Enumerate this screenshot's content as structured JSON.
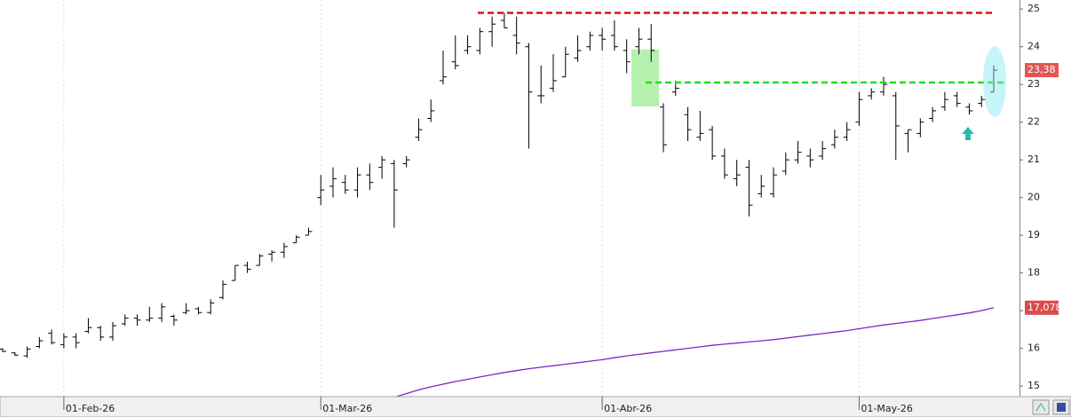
{
  "chart_data": {
    "type": "ohlc",
    "categories": [
      null,
      null,
      null,
      null,
      null,
      "01-Feb-26",
      null,
      null,
      null,
      null,
      null,
      null,
      null,
      null,
      null,
      null,
      null,
      null,
      null,
      null,
      null,
      null,
      null,
      null,
      null,
      null,
      "01-Mar-26",
      null,
      null,
      null,
      null,
      null,
      null,
      null,
      null,
      null,
      null,
      null,
      null,
      null,
      null,
      null,
      null,
      null,
      null,
      null,
      null,
      null,
      null,
      "01-Abr-26",
      null,
      null,
      null,
      null,
      null,
      null,
      null,
      null,
      null,
      null,
      null,
      null,
      null,
      null,
      null,
      null,
      null,
      null,
      null,
      null,
      "01-May-26",
      null,
      null,
      null,
      null,
      null,
      null,
      null,
      null,
      null,
      null,
      null
    ],
    "open": [
      15.98,
      15.88,
      15.8,
      16.05,
      16.4,
      16.1,
      16.3,
      16.45,
      16.55,
      16.3,
      16.65,
      16.8,
      16.75,
      16.8,
      16.85,
      16.95,
      17.05,
      16.95,
      17.35,
      17.8,
      18.2,
      18.2,
      18.5,
      18.55,
      18.8,
      19.0,
      20.0,
      20.3,
      20.4,
      20.2,
      20.6,
      20.8,
      20.9,
      20.9,
      21.6,
      22.1,
      23.1,
      23.6,
      23.9,
      23.9,
      24.4,
      24.7,
      24.3,
      24.0,
      22.7,
      22.9,
      23.2,
      23.7,
      24.0,
      24.3,
      24.3,
      23.9,
      24.0,
      24.2,
      22.4,
      22.8,
      22.2,
      21.6,
      21.8,
      21.1,
      20.5,
      20.8,
      20.1,
      20.1,
      20.7,
      21.0,
      21.1,
      21.1,
      21.4,
      21.6,
      22.0,
      22.7,
      22.8,
      22.7,
      21.7,
      21.7,
      22.1,
      22.4,
      22.7,
      22.4,
      22.5,
      22.8
    ],
    "high": [
      16.0,
      15.9,
      16.05,
      16.3,
      16.5,
      16.4,
      16.4,
      16.8,
      16.6,
      16.7,
      16.9,
      16.9,
      17.1,
      17.2,
      16.9,
      17.2,
      17.1,
      17.3,
      17.8,
      18.2,
      18.3,
      18.5,
      18.6,
      18.8,
      19.0,
      19.2,
      20.6,
      20.8,
      20.6,
      20.8,
      20.9,
      21.1,
      21.0,
      21.1,
      22.1,
      22.6,
      23.9,
      24.3,
      24.3,
      24.5,
      24.8,
      24.9,
      24.8,
      24.1,
      23.5,
      23.8,
      24.0,
      24.3,
      24.4,
      24.5,
      24.7,
      24.2,
      24.5,
      24.6,
      22.5,
      23.1,
      22.4,
      22.3,
      21.9,
      21.3,
      21.0,
      21.0,
      20.6,
      20.8,
      21.2,
      21.5,
      21.3,
      21.5,
      21.8,
      22.0,
      22.8,
      22.9,
      23.2,
      22.8,
      21.8,
      22.1,
      22.4,
      22.8,
      22.8,
      22.5,
      22.7,
      23.5
    ],
    "low": [
      15.9,
      15.8,
      15.75,
      16.0,
      16.1,
      16.0,
      16.0,
      16.4,
      16.2,
      16.2,
      16.6,
      16.6,
      16.7,
      16.7,
      16.6,
      16.9,
      16.9,
      16.9,
      17.3,
      17.8,
      18.0,
      18.2,
      18.3,
      18.4,
      18.8,
      19.0,
      19.8,
      20.0,
      20.1,
      20.0,
      20.2,
      20.5,
      19.2,
      20.8,
      21.5,
      22.0,
      23.0,
      23.4,
      23.8,
      23.8,
      24.0,
      24.5,
      23.8,
      21.3,
      22.5,
      22.8,
      23.2,
      23.6,
      23.9,
      23.9,
      23.9,
      23.3,
      23.8,
      23.6,
      21.2,
      22.7,
      21.5,
      21.5,
      21.0,
      20.5,
      20.3,
      19.5,
      20.0,
      20.0,
      20.6,
      20.9,
      20.8,
      21.0,
      21.3,
      21.5,
      21.9,
      22.6,
      22.7,
      21.0,
      21.2,
      21.6,
      22.0,
      22.3,
      22.4,
      22.2,
      22.4,
      22.8
    ],
    "close": [
      15.92,
      15.82,
      15.98,
      16.2,
      16.15,
      16.3,
      16.15,
      16.55,
      16.3,
      16.6,
      16.8,
      16.75,
      16.8,
      17.1,
      16.75,
      17.0,
      16.95,
      17.2,
      17.7,
      18.2,
      18.1,
      18.45,
      18.55,
      18.7,
      18.95,
      19.1,
      20.2,
      20.5,
      20.2,
      20.6,
      20.4,
      21.0,
      20.2,
      21.0,
      21.8,
      22.3,
      23.2,
      23.5,
      24.0,
      24.4,
      24.6,
      24.5,
      24.1,
      22.8,
      22.7,
      23.1,
      23.8,
      23.9,
      24.3,
      24.2,
      24.0,
      23.6,
      24.2,
      23.9,
      21.4,
      22.9,
      21.8,
      21.7,
      21.1,
      20.6,
      20.6,
      19.8,
      20.3,
      20.6,
      21.0,
      21.2,
      21.0,
      21.3,
      21.6,
      21.8,
      22.6,
      22.8,
      23.0,
      21.9,
      21.8,
      22.0,
      22.3,
      22.6,
      22.5,
      22.3,
      22.6,
      23.38
    ],
    "color": "#000000",
    "moving_average": {
      "color": "#7a28c8",
      "values": [
        null,
        null,
        null,
        null,
        null,
        null,
        null,
        null,
        null,
        null,
        null,
        null,
        null,
        null,
        null,
        null,
        null,
        null,
        null,
        null,
        null,
        null,
        null,
        null,
        null,
        null,
        null,
        null,
        null,
        null,
        null,
        null,
        14.7,
        14.8,
        14.9,
        14.98,
        15.05,
        15.12,
        15.18,
        15.24,
        15.3,
        15.36,
        15.41,
        15.46,
        15.5,
        15.54,
        15.58,
        15.62,
        15.66,
        15.7,
        15.75,
        15.8,
        15.84,
        15.88,
        15.92,
        15.96,
        16.0,
        16.04,
        16.08,
        16.11,
        16.14,
        16.17,
        16.2,
        16.23,
        16.27,
        16.31,
        16.35,
        16.39,
        16.43,
        16.47,
        16.52,
        16.57,
        16.62,
        16.66,
        16.7,
        16.74,
        16.79,
        16.84,
        16.89,
        16.94,
        17.0,
        17.078
      ]
    },
    "levels": [
      {
        "value": 24.9,
        "color": "#dd1111"
      },
      {
        "value": 23.05,
        "color": "#22dd22"
      }
    ],
    "zone": {
      "range": [
        22.42,
        23.93
      ],
      "color": "#b6f0ae"
    },
    "price_tags": [
      {
        "value": 23.38,
        "label": "23,38",
        "color": "#e25555"
      },
      {
        "value": 17.078,
        "label": "17,078",
        "color": "#d94c4c"
      }
    ],
    "ylim": [
      14.72,
      25.24
    ],
    "yticks": [
      15,
      16,
      17,
      18,
      19,
      20,
      21,
      22,
      23,
      24,
      25
    ],
    "grid": true
  }
}
